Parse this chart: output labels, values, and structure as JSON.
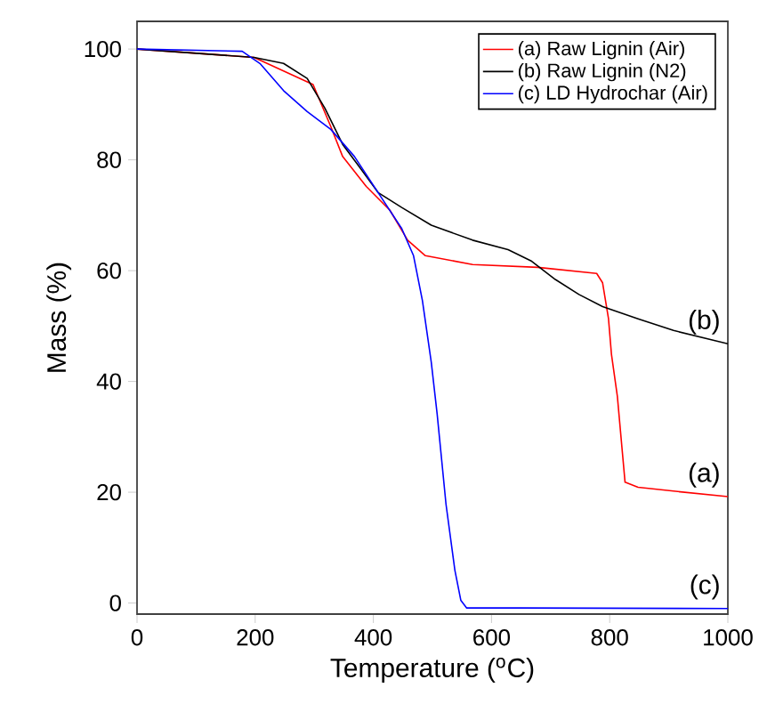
{
  "chart_data": {
    "type": "line",
    "xlabel": "Temperature ($^{o}$C)",
    "ylabel": "Mass (%)",
    "xlim": [
      0,
      1000
    ],
    "ylim": [
      -2,
      105
    ],
    "xticks": [
      0,
      200,
      400,
      600,
      800,
      1000
    ],
    "yticks": [
      0,
      20,
      40,
      60,
      80,
      100
    ],
    "legend": "top right",
    "grid": false,
    "marker": "none",
    "line_style": "solid",
    "series": [
      {
        "name": "(a) Raw Lignin (Air)",
        "color": "#ff0000",
        "x": [
          0,
          198,
          298,
          328,
          348,
          388,
          428,
          458,
          488,
          568,
          678,
          778,
          788,
          798,
          803,
          813,
          826,
          848,
          908,
          1000
        ],
        "values": [
          100,
          98.5,
          93.6,
          86,
          80.6,
          75.2,
          70.9,
          65.5,
          62.7,
          61.1,
          60.6,
          59.5,
          57.8,
          51.3,
          44.9,
          37.3,
          21.8,
          20.9,
          20.2,
          19.2
        ]
      },
      {
        "name": "(b) Raw Lignin (N2)",
        "color": "#000000",
        "x": [
          0,
          198,
          248,
          288,
          318,
          348,
          378,
          408,
          448,
          498,
          568,
          628,
          668,
          708,
          748,
          788,
          848,
          908,
          1000
        ],
        "values": [
          100,
          98.5,
          97.4,
          94.7,
          89.3,
          82.8,
          78.5,
          74.1,
          71.4,
          68.2,
          65.5,
          63.8,
          61.7,
          58.4,
          55.7,
          53.5,
          51.3,
          49.2,
          46.8
        ]
      },
      {
        "name": "(c) LD Hydrochar (Air)",
        "color": "#0000ff",
        "x": [
          0,
          178,
          208,
          248,
          288,
          328,
          368,
          408,
          448,
          468,
          483,
          498,
          508,
          523,
          538,
          548,
          558,
          648,
          1000
        ],
        "values": [
          100,
          99.6,
          97.4,
          92.5,
          88.7,
          85.5,
          80.6,
          74.1,
          67.6,
          62.7,
          54.6,
          43.5,
          34.1,
          17.8,
          5.9,
          0.5,
          -0.9,
          -0.9,
          -1.0
        ]
      }
    ],
    "annotations": [
      "(a)",
      "(b)",
      "(c)"
    ]
  }
}
